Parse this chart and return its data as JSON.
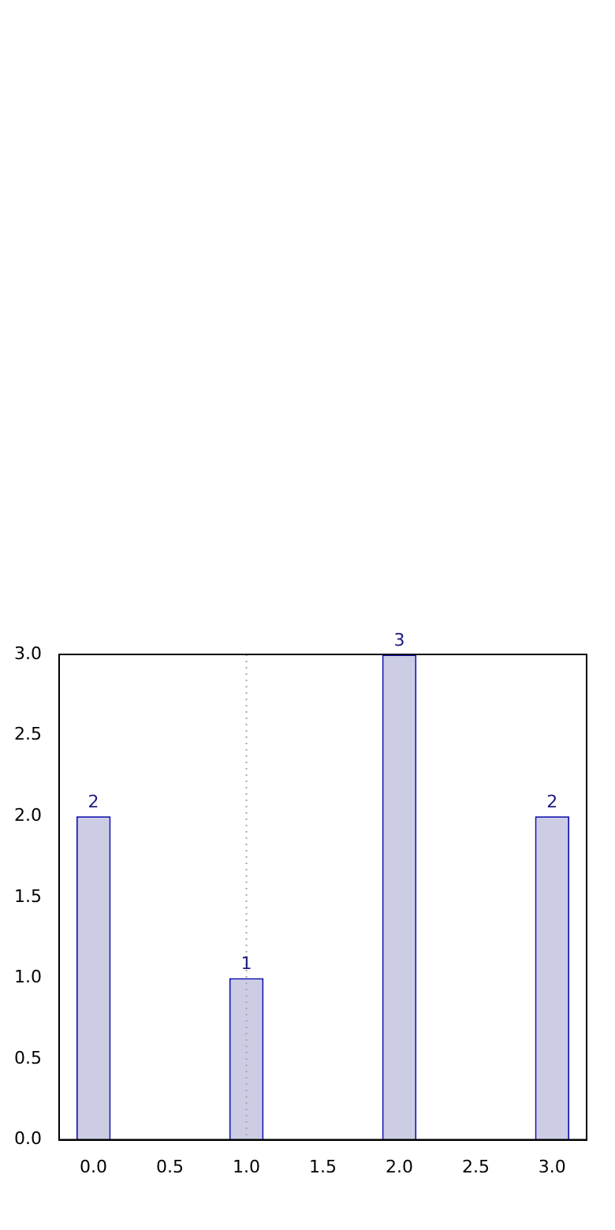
{
  "chart_data": {
    "type": "bar",
    "x": [
      0,
      1,
      2,
      3
    ],
    "values": [
      2,
      1,
      3,
      2
    ],
    "color": "#cccce4",
    "xlim": [
      -0.225,
      3.225
    ],
    "xticks": [
      {
        "value": 0,
        "label": "0.0"
      },
      {
        "value": 0.5,
        "label": "0.5"
      },
      {
        "value": 1,
        "label": "1.0"
      },
      {
        "value": 1.5,
        "label": "1.5"
      },
      {
        "value": 2,
        "label": "2.0"
      },
      {
        "value": 2.5,
        "label": "2.5"
      },
      {
        "value": 3,
        "label": "3.0"
      }
    ],
    "ylim": [
      0,
      3
    ],
    "yticks": [
      {
        "value": 0,
        "label": "0.0"
      },
      {
        "value": 0.5,
        "label": "0.5"
      },
      {
        "value": 1,
        "label": "1.0"
      },
      {
        "value": 1.5,
        "label": "1.5"
      },
      {
        "value": 2,
        "label": "2.0"
      },
      {
        "value": 2.5,
        "label": "2.5"
      },
      {
        "value": 3,
        "label": "3.0"
      }
    ],
    "data_labels": true,
    "grid": false,
    "legend": false,
    "ref_lines": [
      {
        "axis": "x",
        "value": 1,
        "color": "#aaaaaa",
        "line_style": "dotted"
      }
    ]
  }
}
